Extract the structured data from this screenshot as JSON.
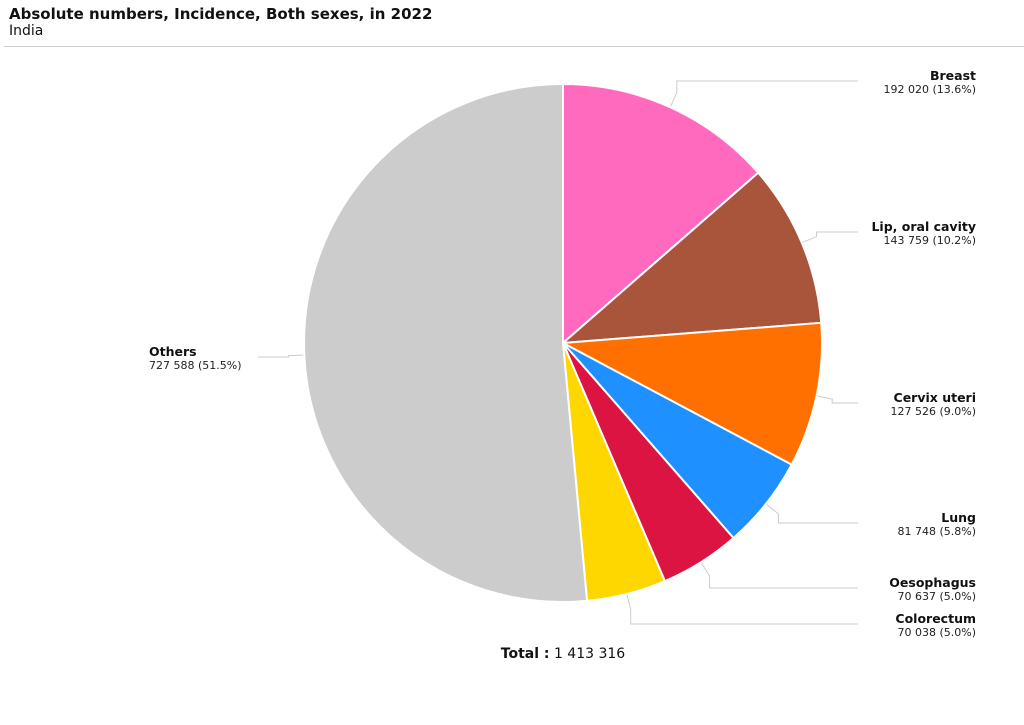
{
  "header": {
    "title": "Absolute numbers, Incidence, Both sexes, in 2022",
    "subtitle": "India"
  },
  "total": {
    "label": "Total :",
    "value": "1 413 316"
  },
  "chart_data": {
    "type": "pie",
    "title": "Absolute numbers, Incidence, Both sexes, in 2022",
    "subtitle": "India",
    "total": 1413316,
    "slices": [
      {
        "name": "Breast",
        "value": 192020,
        "display": "192 020 (13.6%)",
        "percent": 13.6,
        "color": "#ff69be"
      },
      {
        "name": "Lip, oral cavity",
        "value": 143759,
        "display": "143 759 (10.2%)",
        "percent": 10.2,
        "color": "#a8553c"
      },
      {
        "name": "Cervix uteri",
        "value": 127526,
        "display": "127 526 (9.0%)",
        "percent": 9.0,
        "color": "#ff7000"
      },
      {
        "name": "Lung",
        "value": 81748,
        "display": "81 748 (5.8%)",
        "percent": 5.8,
        "color": "#1e90ff"
      },
      {
        "name": "Oesophagus",
        "value": 70637,
        "display": "70 637 (5.0%)",
        "percent": 5.0,
        "color": "#dc1442"
      },
      {
        "name": "Colorectum",
        "value": 70038,
        "display": "70 038 (5.0%)",
        "percent": 5.0,
        "color": "#ffd700"
      },
      {
        "name": "Others",
        "value": 727588,
        "display": "727 588 (51.5%)",
        "percent": 51.5,
        "color": "#cccccc"
      }
    ]
  }
}
